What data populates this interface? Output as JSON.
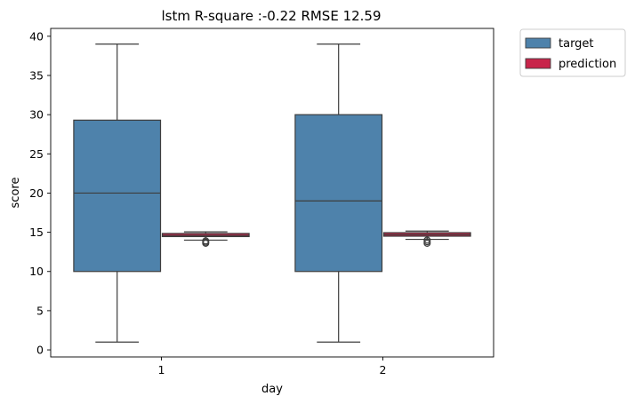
{
  "chart_data": {
    "type": "boxplot",
    "title": "lstm R-square :-0.22 RMSE 12.59",
    "xlabel": "day",
    "ylabel": "score",
    "categories": [
      "1",
      "2"
    ],
    "ylim": [
      -0.9,
      41.0
    ],
    "yticks": [
      0,
      5,
      10,
      15,
      20,
      25,
      30,
      35,
      40
    ],
    "legend_position": "outside-top-right",
    "series": [
      {
        "name": "target",
        "color": "#4e82ab",
        "boxes": [
          {
            "category": "1",
            "whislo": 1,
            "q1": 10,
            "median": 20,
            "q3": 29.3,
            "whishi": 39,
            "fliers": []
          },
          {
            "category": "2",
            "whislo": 1,
            "q1": 10,
            "median": 19,
            "q3": 30,
            "whishi": 39,
            "fliers": []
          }
        ]
      },
      {
        "name": "prediction",
        "color": "#c8244a",
        "boxes": [
          {
            "category": "1",
            "whislo": 14.0,
            "q1": 14.45,
            "median": 14.6,
            "q3": 14.85,
            "whishi": 15.05,
            "fliers": [
              13.6,
              13.75,
              13.9
            ]
          },
          {
            "category": "2",
            "whislo": 14.1,
            "q1": 14.5,
            "median": 14.7,
            "q3": 14.95,
            "whishi": 15.15,
            "fliers": [
              13.6,
              13.8,
              14.0
            ]
          }
        ]
      }
    ]
  }
}
